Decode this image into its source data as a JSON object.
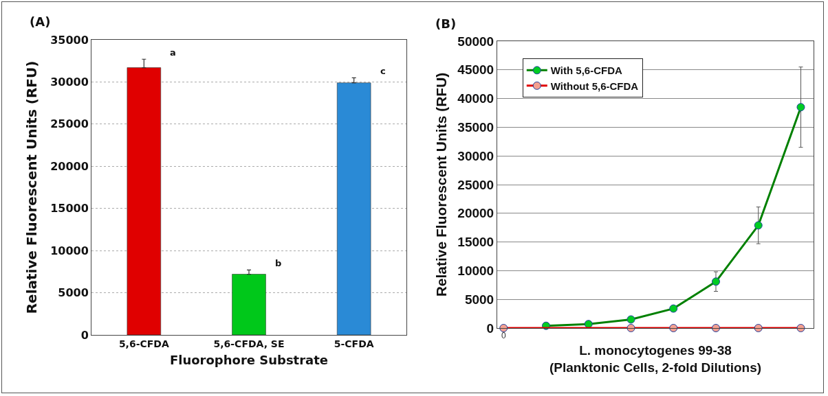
{
  "chart_data": [
    {
      "type": "bar",
      "ylabel": "Relative Fluorescent Units (RFU)",
      "xlabel": "Fluorophore Substrate",
      "annotations": [
        "(A)",
        {
          "text": "a",
          "x": "5,6-CFDA",
          "y": 32700
        },
        {
          "text": "b",
          "x": "5,6-CFDA, SE",
          "y": 7700
        },
        {
          "text": "c",
          "x": "5-CFDA",
          "y": 30500
        }
      ],
      "categories": [
        "5,6-CFDA",
        "5,6-CFDA, SE",
        "5-CFDA"
      ],
      "values": [
        31700,
        7200,
        29900
      ],
      "colors": [
        "#e00000",
        "#00c81a",
        "#2a8ad6"
      ],
      "errors": [
        1000,
        500,
        600
      ],
      "ylim": [
        0,
        35000
      ],
      "yticks": [
        0,
        5000,
        10000,
        15000,
        20000,
        25000,
        30000,
        35000
      ],
      "grid": "y",
      "legend": false
    },
    {
      "type": "line",
      "ylabel": "Relative Fluorescent Units (RFU)",
      "xlabel": "L. monocytogenes 99-38\n(Planktonic Cells, 2-fold Dilutions)",
      "annotations": [
        "(B)"
      ],
      "categories": [
        "0",
        null,
        null,
        null,
        null,
        null,
        null,
        null
      ],
      "series": [
        {
          "name": "With 5,6-CFDA",
          "color": "#008000",
          "colors": [
            "#00cc22",
            "#00cc22",
            "#00cc22",
            "#00cc22",
            "#00cc22",
            "#00cc22",
            "#00cc22",
            "#00cc22"
          ],
          "values": [
            null,
            400,
            700,
            1500,
            3400,
            8100,
            17900,
            38500
          ],
          "errors": [
            null,
            null,
            null,
            null,
            null,
            1700,
            3200,
            7000
          ]
        },
        {
          "name": "Without 5,6-CFDA",
          "color": "#e00000",
          "colors": [
            "#f4a090",
            "#f4a090",
            "#f4a090",
            "#f4a090",
            "#f4a090",
            "#f4a090",
            "#f4a090",
            "#f4a090"
          ],
          "values": [
            0,
            null,
            null,
            0,
            0,
            0,
            0,
            0
          ]
        }
      ],
      "ylim": [
        0,
        50000
      ],
      "yticks": [
        0,
        5000,
        10000,
        15000,
        20000,
        25000,
        30000,
        35000,
        40000,
        45000,
        50000
      ],
      "grid": "y",
      "legend": "top left",
      "marker": "circle",
      "line_style": "solid"
    }
  ]
}
